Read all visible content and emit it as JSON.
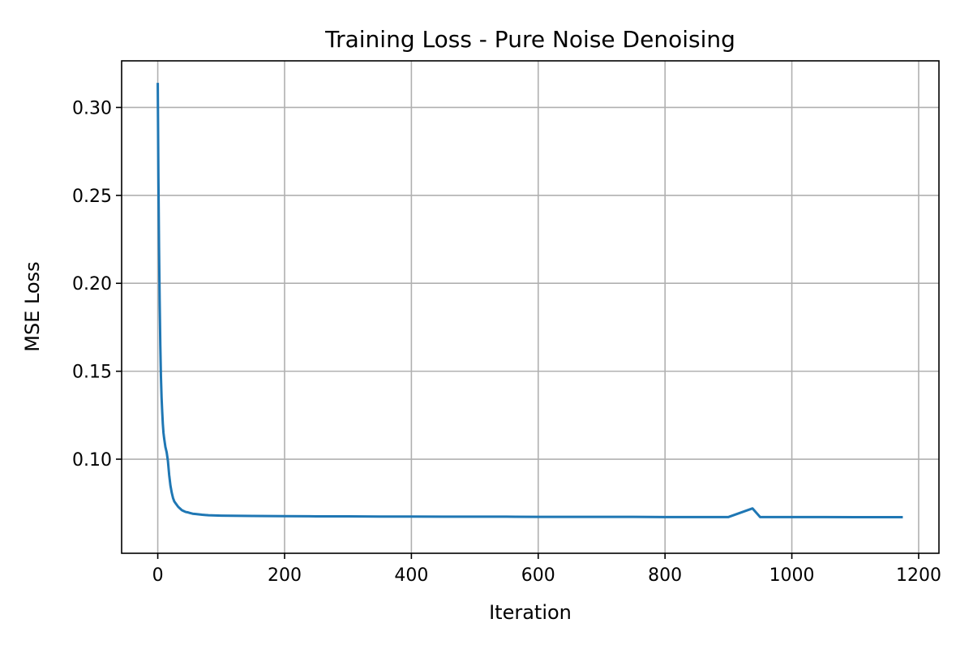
{
  "chart_data": {
    "type": "line",
    "title": "Training Loss - Pure Noise Denoising",
    "xlabel": "Iteration",
    "ylabel": "MSE Loss",
    "xlim": [
      -57,
      1232
    ],
    "ylim": [
      0.0465,
      0.3265
    ],
    "xticks": [
      0,
      200,
      400,
      600,
      800,
      1000,
      1200
    ],
    "xtick_labels": [
      "0",
      "200",
      "400",
      "600",
      "800",
      "1000",
      "1200"
    ],
    "yticks": [
      0.1,
      0.15,
      0.2,
      0.25,
      0.3
    ],
    "ytick_labels": [
      "0.10",
      "0.15",
      "0.20",
      "0.25",
      "0.30"
    ],
    "grid": true,
    "legend": "none",
    "series": [
      {
        "color": "#1f77b4",
        "x": [
          0,
          1,
          2,
          3,
          4,
          5,
          6,
          7,
          8,
          9,
          10,
          12,
          14,
          16,
          18,
          20,
          22,
          24,
          26,
          28,
          30,
          32,
          35,
          38,
          41,
          44,
          47,
          50,
          55,
          60,
          70,
          80,
          90,
          100,
          150,
          200,
          250,
          300,
          350,
          400,
          450,
          500,
          550,
          600,
          650,
          700,
          750,
          800,
          850,
          900,
          938,
          950,
          1000,
          1050,
          1100,
          1150,
          1175
        ],
        "y": [
          0.314,
          0.26,
          0.22,
          0.19,
          0.165,
          0.147,
          0.135,
          0.127,
          0.12,
          0.115,
          0.112,
          0.107,
          0.104,
          0.099,
          0.091,
          0.085,
          0.081,
          0.078,
          0.076,
          0.075,
          0.074,
          0.073,
          0.072,
          0.071,
          0.0705,
          0.07,
          0.0698,
          0.0695,
          0.069,
          0.0688,
          0.0684,
          0.0681,
          0.068,
          0.0679,
          0.0677,
          0.0676,
          0.0675,
          0.0675,
          0.0674,
          0.0674,
          0.0673,
          0.0673,
          0.0673,
          0.0672,
          0.0672,
          0.0672,
          0.0672,
          0.0671,
          0.0671,
          0.0671,
          0.072,
          0.0671,
          0.0671,
          0.0671,
          0.067,
          0.067,
          0.067
        ]
      }
    ]
  }
}
